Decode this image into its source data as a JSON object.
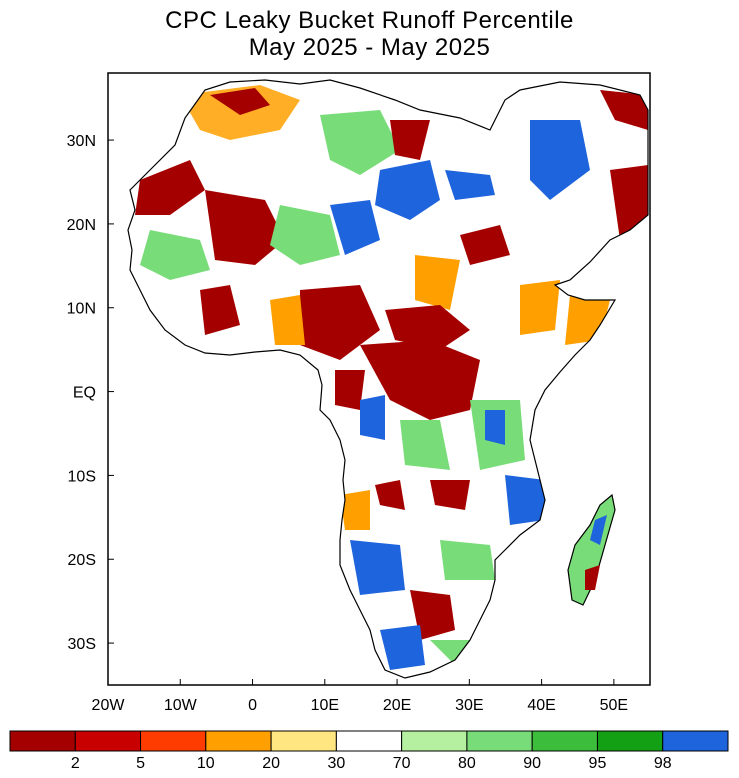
{
  "title": {
    "line1": "CPC Leaky Bucket Runoff Percentile",
    "line2": "May 2025 - May 2025"
  },
  "map": {
    "lon_range": [
      -20,
      55
    ],
    "lat_range": [
      -35,
      38
    ],
    "x_ticks": [
      "20W",
      "10W",
      "0",
      "10E",
      "20E",
      "30E",
      "40E",
      "50E"
    ],
    "y_ticks": [
      "30N",
      "20N",
      "10N",
      "EQ",
      "10S",
      "20S",
      "30S"
    ]
  },
  "legend": {
    "labels": [
      "2",
      "5",
      "10",
      "20",
      "30",
      "70",
      "80",
      "90",
      "95",
      "98"
    ],
    "colors": [
      "#a50000",
      "#c80000",
      "#ff3c00",
      "#ffa000",
      "#ffe680",
      "#ffffff",
      "#b4f0a0",
      "#78dc78",
      "#3cbe3c",
      "#14a014",
      "#1e64dc"
    ]
  },
  "palette": {
    "dry_severe": "#a50000",
    "dry": "#ff3c00",
    "dry_moderate": "#ffa000",
    "near_normal": "#ffffff",
    "wet_moderate": "#78dc78",
    "wet_severe": "#1e64dc"
  }
}
